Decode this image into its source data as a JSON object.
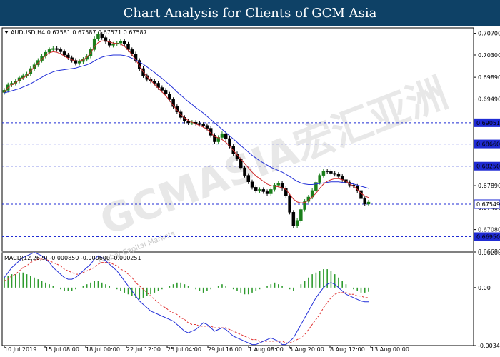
{
  "banner": {
    "title": "Chart Analysis for Clients of GCM Asia"
  },
  "watermark": {
    "main": "GCMASIA宏汇亚洲",
    "sub": "Global Capital Markets"
  },
  "colors": {
    "banner_bg": "#0e4166",
    "candle_bull": "#1a7f1a",
    "candle_bear": "#000000",
    "ma_fast": "#d12a2a",
    "ma_slow": "#2330d8",
    "level_line": "#1f2bd4",
    "label_bg": "#1f2bd4",
    "macd_hist": "#2e9b2e",
    "macd_signal": "#e03030",
    "macd_line": "#2330d8"
  },
  "chart_data": [
    {
      "type": "candlestick",
      "symbol_info": "AUDUSD,H4  0.67581 0.67587 0.67571 0.67587",
      "y_ticks": [
        "0.70700",
        "0.70300",
        "0.69890",
        "0.69490",
        "0.67890",
        "0.67480",
        "0.67080",
        "0.66680"
      ],
      "y_range": [
        0.6668,
        0.708
      ],
      "x_labels": [
        "10 Jul 2019",
        "15 Jul 08:00",
        "18 Jul 00:00",
        "22 Jul 12:00",
        "25 Jul 04:00",
        "29 Jul 16:00",
        "1 Aug 08:00",
        "5 Aug 20:00",
        "8 Aug 12:00",
        "13 Aug 00:00"
      ],
      "levels": [
        {
          "value": 0.69051,
          "label": "0.69051",
          "highlight": false
        },
        {
          "value": 0.6866,
          "label": "0.68660",
          "highlight": false
        },
        {
          "value": 0.6825,
          "label": "0.68250",
          "highlight": false
        },
        {
          "value": 0.67549,
          "label": "0.67549",
          "highlight": true
        },
        {
          "value": 0.6695,
          "label": "0.66950",
          "highlight": false
        }
      ],
      "close": [
        0.6965,
        0.6975,
        0.6978,
        0.6982,
        0.6988,
        0.6992,
        0.6995,
        0.7005,
        0.7012,
        0.702,
        0.7028,
        0.7035,
        0.704,
        0.7042,
        0.704,
        0.7036,
        0.703,
        0.7025,
        0.702,
        0.7015,
        0.7018,
        0.7022,
        0.7028,
        0.704,
        0.706,
        0.7068,
        0.7062,
        0.7055,
        0.7048,
        0.705,
        0.7052,
        0.7055,
        0.705,
        0.704,
        0.7032,
        0.702,
        0.7005,
        0.6992,
        0.6985,
        0.6982,
        0.6978,
        0.697,
        0.6965,
        0.6958,
        0.6948,
        0.6935,
        0.6925,
        0.6915,
        0.6908,
        0.6905,
        0.6906,
        0.6904,
        0.6902,
        0.69,
        0.6895,
        0.6882,
        0.687,
        0.6878,
        0.6885,
        0.6876,
        0.6862,
        0.6848,
        0.6838,
        0.6822,
        0.6808,
        0.6796,
        0.6786,
        0.678,
        0.6782,
        0.6778,
        0.6774,
        0.6782,
        0.679,
        0.6793,
        0.6784,
        0.677,
        0.674,
        0.6715,
        0.6725,
        0.6745,
        0.676,
        0.6768,
        0.678,
        0.6795,
        0.6808,
        0.6816,
        0.6815,
        0.6812,
        0.681,
        0.6806,
        0.68,
        0.6795,
        0.679,
        0.6788,
        0.678,
        0.6765,
        0.6755,
        0.67587
      ],
      "ma_fast": [
        0.6962,
        0.697,
        0.6975,
        0.6979,
        0.6984,
        0.6988,
        0.6992,
        0.7,
        0.7008,
        0.7015,
        0.7022,
        0.7029,
        0.7034,
        0.7036,
        0.7035,
        0.7032,
        0.7028,
        0.7024,
        0.7021,
        0.7019,
        0.7019,
        0.7021,
        0.7026,
        0.7034,
        0.7045,
        0.7053,
        0.7056,
        0.7056,
        0.7054,
        0.7052,
        0.7051,
        0.705,
        0.7046,
        0.7039,
        0.7031,
        0.7021,
        0.701,
        0.6999,
        0.699,
        0.6983,
        0.6976,
        0.6969,
        0.6962,
        0.6955,
        0.6946,
        0.6937,
        0.6928,
        0.692,
        0.6914,
        0.6909,
        0.6906,
        0.6903,
        0.69,
        0.6897,
        0.6893,
        0.6886,
        0.688,
        0.6877,
        0.6874,
        0.6869,
        0.6862,
        0.6854,
        0.6846,
        0.6838,
        0.683,
        0.6822,
        0.6814,
        0.6807,
        0.6802,
        0.6797,
        0.6792,
        0.6789,
        0.6788,
        0.6787,
        0.6785,
        0.6782,
        0.6773,
        0.6764,
        0.6759,
        0.6757,
        0.6758,
        0.6762,
        0.6768,
        0.6775,
        0.6784,
        0.6792,
        0.6797,
        0.68,
        0.6802,
        0.6802,
        0.68,
        0.6797,
        0.6792,
        0.6788,
        0.6782,
        0.6775,
        0.677,
        0.6767
      ],
      "ma_slow": [
        0.696,
        0.6962,
        0.6964,
        0.6966,
        0.6968,
        0.6971,
        0.6974,
        0.6977,
        0.6981,
        0.6985,
        0.6989,
        0.6993,
        0.6996,
        0.6999,
        0.7001,
        0.7002,
        0.7003,
        0.7004,
        0.7005,
        0.7006,
        0.7008,
        0.701,
        0.7012,
        0.7015,
        0.7019,
        0.7023,
        0.7026,
        0.7028,
        0.7029,
        0.703,
        0.703,
        0.703,
        0.7029,
        0.7027,
        0.7024,
        0.7021,
        0.7017,
        0.7013,
        0.7008,
        0.7003,
        0.6998,
        0.6992,
        0.6987,
        0.6981,
        0.6975,
        0.6969,
        0.6962,
        0.6956,
        0.695,
        0.6944,
        0.6939,
        0.6933,
        0.6928,
        0.6923,
        0.6917,
        0.6911,
        0.6905,
        0.6899,
        0.6893,
        0.6887,
        0.6881,
        0.6875,
        0.6869,
        0.6863,
        0.6857,
        0.6851,
        0.6845,
        0.684,
        0.6835,
        0.6831,
        0.6827,
        0.6823,
        0.682,
        0.6817,
        0.6814,
        0.681,
        0.6806,
        0.6801,
        0.6797,
        0.6794,
        0.6792,
        0.6791,
        0.6791,
        0.6792,
        0.6793,
        0.6794,
        0.6795,
        0.6796,
        0.6796,
        0.6796,
        0.6795,
        0.6794,
        0.6793,
        0.6792,
        0.679,
        0.6788,
        0.6786,
        0.6784
      ]
    },
    {
      "type": "macd",
      "label": "MACD(12,26,9) -0.000850 -0.000600 -0.000251",
      "y_ticks": [
        "0.002083",
        "0.00",
        "-0.003459"
      ],
      "y_range": [
        -0.003459,
        0.002083
      ],
      "histogram": [
        0.0006,
        0.0007,
        0.0008,
        0.0008,
        0.0009,
        0.0009,
        0.0008,
        0.0007,
        0.0006,
        0.0005,
        0.0004,
        0.0003,
        0.0002,
        0.0001,
        0.0,
        -0.0001,
        -0.0002,
        -0.0002,
        -0.0002,
        -0.0001,
        0.0,
        0.0001,
        0.0002,
        0.0003,
        0.0004,
        0.0004,
        0.0003,
        0.0002,
        0.0001,
        0.0,
        -0.0001,
        -0.0002,
        -0.0003,
        -0.0004,
        -0.0005,
        -0.0006,
        -0.0007,
        -0.0006,
        -0.0005,
        -0.0004,
        -0.0003,
        -0.0002,
        -0.0001,
        0.0,
        0.0001,
        0.0002,
        0.0003,
        0.0003,
        0.0002,
        0.0001,
        0.0,
        -0.0001,
        -0.0002,
        -0.0003,
        -0.0002,
        -0.0001,
        0.0,
        0.0001,
        0.0002,
        0.0001,
        0.0,
        -0.0001,
        -0.0002,
        -0.0003,
        -0.0004,
        -0.0004,
        -0.0003,
        -0.0002,
        -0.0001,
        0.0,
        0.0001,
        0.0002,
        0.0003,
        0.0002,
        0.0001,
        0.0,
        -0.0001,
        -0.0002,
        0.0,
        0.0002,
        0.0004,
        0.0006,
        0.0008,
        0.0009,
        0.001,
        0.0011,
        0.0011,
        0.001,
        0.0008,
        0.0006,
        0.0004,
        0.0002,
        0.0,
        -0.0001,
        -0.0002,
        -0.0003,
        -0.0003,
        -0.00025
      ],
      "macd_line": [
        0.0006,
        0.0009,
        0.0012,
        0.0014,
        0.0016,
        0.0018,
        0.0019,
        0.002,
        0.0021,
        0.002,
        0.0019,
        0.0017,
        0.0015,
        0.0012,
        0.001,
        0.0008,
        0.0006,
        0.0005,
        0.0005,
        0.0006,
        0.0008,
        0.001,
        0.0012,
        0.0014,
        0.0017,
        0.0019,
        0.0018,
        0.0016,
        0.0014,
        0.0012,
        0.001,
        0.0007,
        0.0004,
        0.0001,
        -0.0002,
        -0.0005,
        -0.0008,
        -0.001,
        -0.0012,
        -0.0014,
        -0.0015,
        -0.0016,
        -0.0017,
        -0.0018,
        -0.0019,
        -0.002,
        -0.0022,
        -0.0024,
        -0.0026,
        -0.0027,
        -0.0026,
        -0.0025,
        -0.0023,
        -0.0021,
        -0.0022,
        -0.0024,
        -0.0026,
        -0.0025,
        -0.0024,
        -0.0025,
        -0.0027,
        -0.0029,
        -0.003,
        -0.0031,
        -0.0032,
        -0.0033,
        -0.0034,
        -0.0034,
        -0.0033,
        -0.0032,
        -0.0031,
        -0.003,
        -0.0031,
        -0.0032,
        -0.0034,
        -0.0034,
        -0.0032,
        -0.003,
        -0.0026,
        -0.0022,
        -0.0018,
        -0.0014,
        -0.001,
        -0.0006,
        -0.0003,
        0.0,
        0.0002,
        0.0003,
        0.0002,
        0.0,
        -0.0002,
        -0.0004,
        -0.0005,
        -0.0006,
        -0.0007,
        -0.0008,
        -0.00085,
        -0.00085
      ],
      "signal_line": [
        0.0004,
        0.0005,
        0.0007,
        0.0008,
        0.001,
        0.0012,
        0.0013,
        0.0015,
        0.0016,
        0.0017,
        0.0017,
        0.0017,
        0.0016,
        0.0015,
        0.0014,
        0.0013,
        0.0011,
        0.001,
        0.0009,
        0.0008,
        0.0008,
        0.0009,
        0.001,
        0.0011,
        0.0012,
        0.0014,
        0.0015,
        0.0015,
        0.0015,
        0.0014,
        0.0013,
        0.0011,
        0.001,
        0.0008,
        0.0006,
        0.0003,
        0.0001,
        -0.0001,
        -0.0003,
        -0.0005,
        -0.0007,
        -0.0009,
        -0.0011,
        -0.0012,
        -0.0014,
        -0.0015,
        -0.0016,
        -0.0018,
        -0.0019,
        -0.0021,
        -0.0022,
        -0.0022,
        -0.0023,
        -0.0023,
        -0.0023,
        -0.0023,
        -0.0024,
        -0.0024,
        -0.0024,
        -0.0024,
        -0.0025,
        -0.0026,
        -0.0027,
        -0.0028,
        -0.0029,
        -0.003,
        -0.0031,
        -0.0031,
        -0.0032,
        -0.0032,
        -0.0032,
        -0.0032,
        -0.0032,
        -0.0032,
        -0.0032,
        -0.0033,
        -0.0033,
        -0.0032,
        -0.0031,
        -0.003,
        -0.0028,
        -0.0025,
        -0.0022,
        -0.0019,
        -0.0016,
        -0.0012,
        -0.0009,
        -0.0006,
        -0.0004,
        -0.0003,
        -0.0003,
        -0.0003,
        -0.0004,
        -0.0004,
        -0.0005,
        -0.0005,
        -0.0006,
        -0.0006
      ]
    }
  ]
}
